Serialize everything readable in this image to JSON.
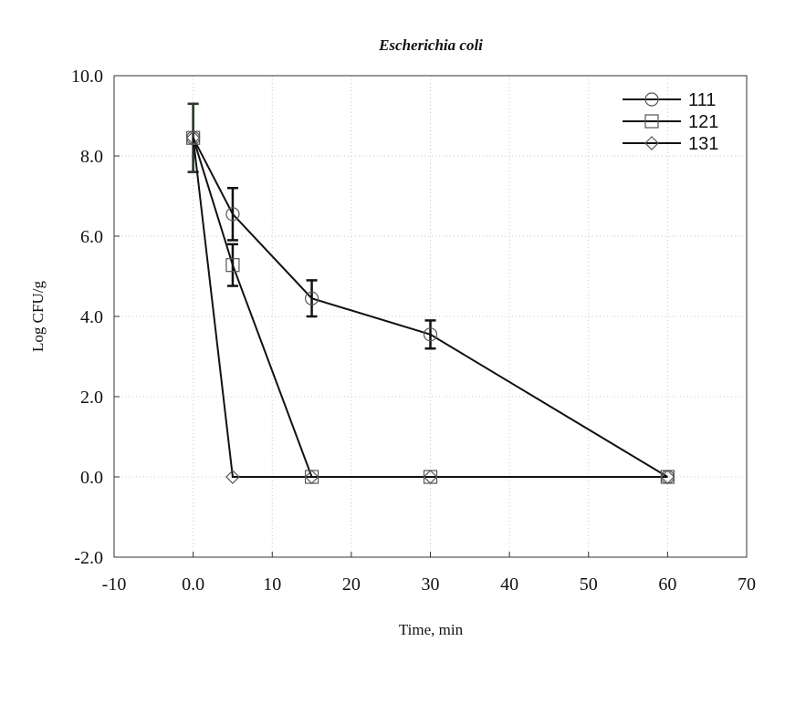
{
  "chart_data": {
    "type": "line",
    "title": "Escherichia coli",
    "xlabel": "Time, min",
    "ylabel": "Log CFU/g",
    "xlim": [
      -10,
      70
    ],
    "ylim": [
      -2,
      10
    ],
    "xticks": [
      -10,
      0,
      10,
      20,
      30,
      40,
      50,
      60,
      70
    ],
    "xtick_labels": [
      "-10",
      "0.0",
      "10",
      "20",
      "30",
      "40",
      "50",
      "60",
      "70"
    ],
    "yticks": [
      -2,
      0,
      2,
      4,
      6,
      8,
      10
    ],
    "ytick_labels": [
      "-2.0",
      "0.0",
      "2.0",
      "4.0",
      "6.0",
      "8.0",
      "10.0"
    ],
    "grid": true,
    "legend_position": "top-right",
    "series": [
      {
        "name": "111",
        "marker": "circle",
        "x": [
          0,
          5,
          15,
          30,
          60
        ],
        "y": [
          8.45,
          6.55,
          4.45,
          3.55,
          0.0
        ],
        "error": [
          0.85,
          0.65,
          0.45,
          0.35,
          0
        ]
      },
      {
        "name": "121",
        "marker": "square",
        "x": [
          0,
          5,
          15,
          30,
          60
        ],
        "y": [
          8.45,
          5.28,
          0.0,
          0.0,
          0.0
        ],
        "error": [
          0.85,
          0.52,
          0,
          0,
          0
        ]
      },
      {
        "name": "131",
        "marker": "diamond",
        "x": [
          0,
          5,
          15,
          30,
          60
        ],
        "y": [
          8.45,
          0.0,
          0.0,
          0.0,
          0.0
        ],
        "error": [
          0,
          0,
          0,
          0,
          0
        ]
      }
    ]
  }
}
